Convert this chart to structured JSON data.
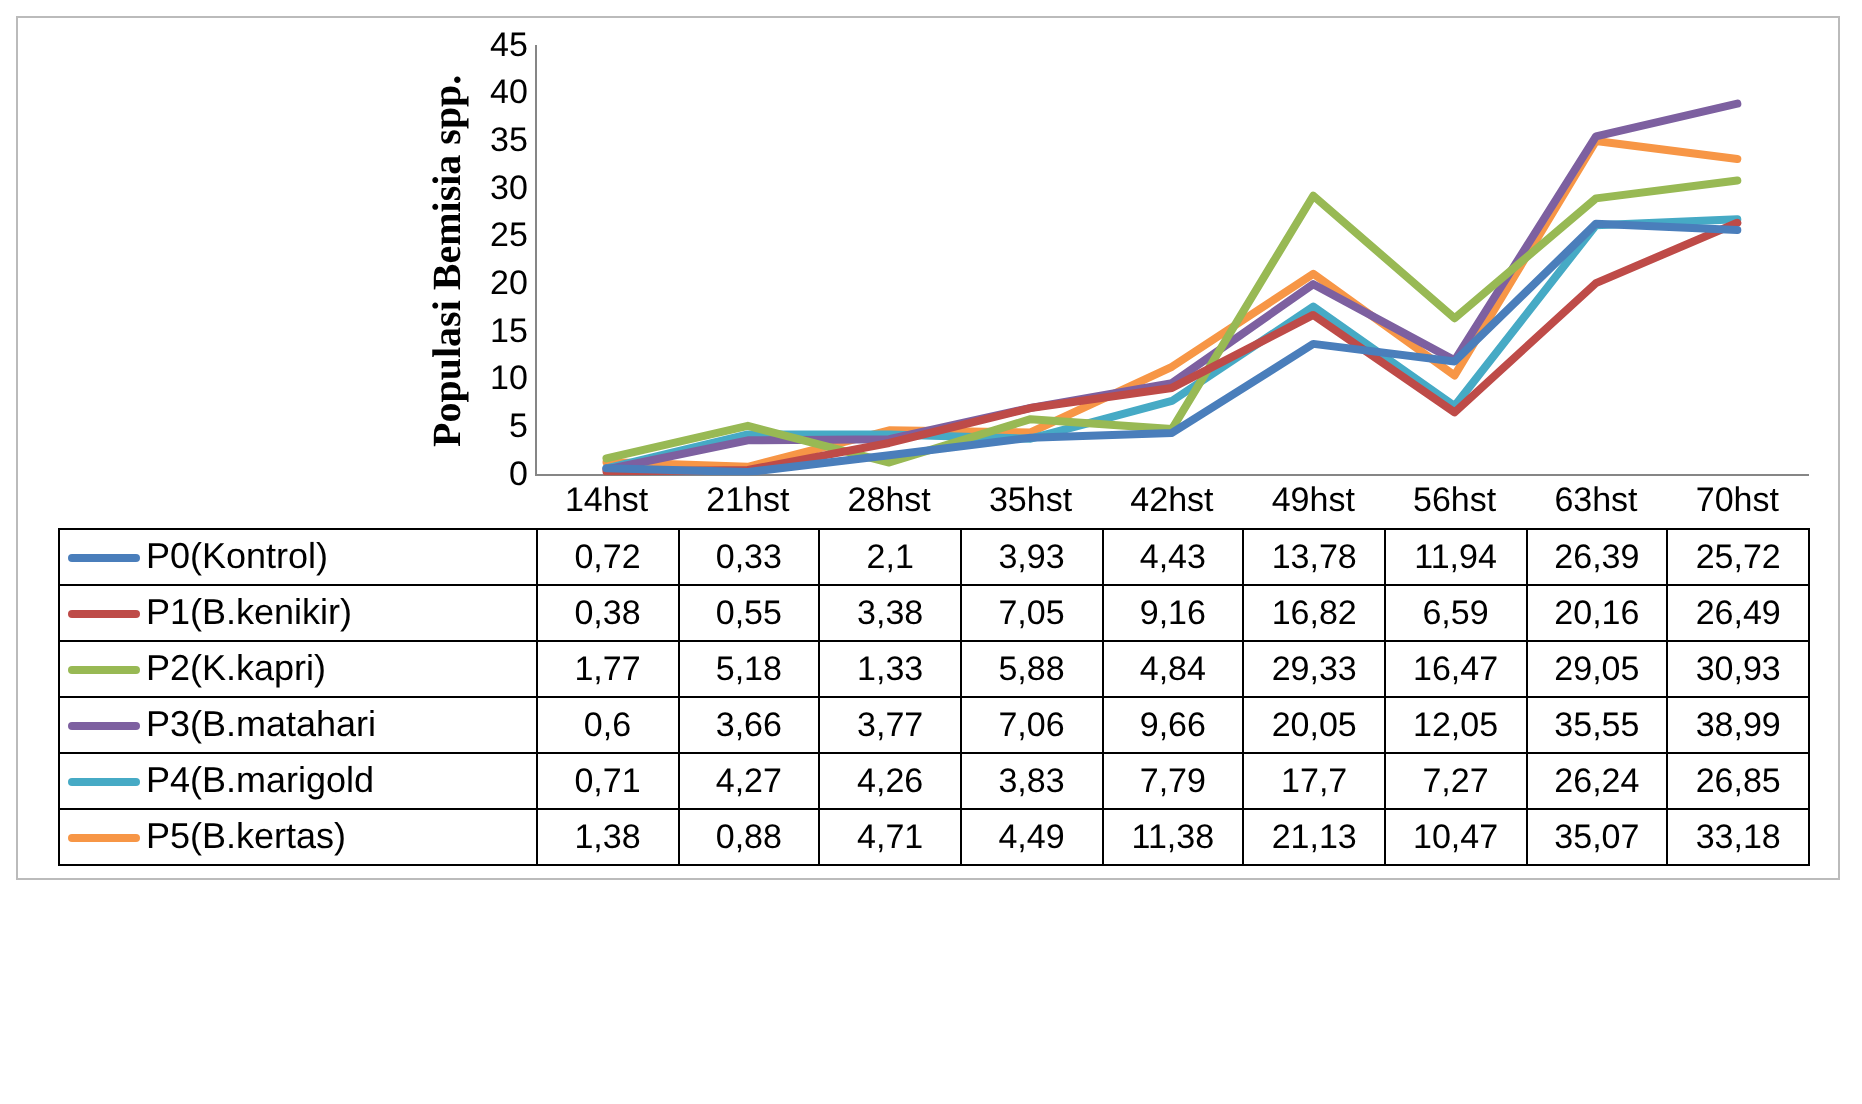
{
  "chart_data": {
    "type": "line",
    "ylabel": "Populasi Bemisia spp.",
    "categories": [
      "14hst",
      "21hst",
      "28hst",
      "35hst",
      "42hst",
      "49hst",
      "56hst",
      "63hst",
      "70hst"
    ],
    "ylim": [
      0,
      45
    ],
    "yticks": [
      0,
      5,
      10,
      15,
      20,
      25,
      30,
      35,
      40,
      45
    ],
    "grid": false,
    "legend": "bottom",
    "marker": "none",
    "series": [
      {
        "name": "P0(Kontrol)",
        "color": "#4a7ebb",
        "values": [
          0.72,
          0.33,
          2.1,
          3.93,
          4.43,
          13.78,
          11.94,
          26.39,
          25.72
        ],
        "value_labels": [
          "0,72",
          "0,33",
          "2,1",
          "3,93",
          "4,43",
          "13,78",
          "11,94",
          "26,39",
          "25,72"
        ]
      },
      {
        "name": "P1(B.kenikir)",
        "color": "#be4b48",
        "values": [
          0.38,
          0.55,
          3.38,
          7.05,
          9.16,
          16.82,
          6.59,
          20.16,
          26.49
        ],
        "value_labels": [
          "0,38",
          "0,55",
          "3,38",
          "7,05",
          "9,16",
          "16,82",
          "6,59",
          "20,16",
          "26,49"
        ]
      },
      {
        "name": "P2(K.kapri)",
        "color": "#98b954",
        "values": [
          1.77,
          5.18,
          1.33,
          5.88,
          4.84,
          29.33,
          16.47,
          29.05,
          30.93
        ],
        "value_labels": [
          "1,77",
          "5,18",
          "1,33",
          "5,88",
          "4,84",
          "29,33",
          "16,47",
          "29,05",
          "30,93"
        ]
      },
      {
        "name": "P3(B.matahari",
        "color": "#7d60a0",
        "values": [
          0.6,
          3.66,
          3.77,
          7.06,
          9.66,
          20.05,
          12.05,
          35.55,
          38.99
        ],
        "value_labels": [
          "0,6",
          "3,66",
          "3,77",
          "7,06",
          "9,66",
          "20,05",
          "12,05",
          "35,55",
          "38,99"
        ]
      },
      {
        "name": "P4(B.marigold",
        "color": "#46aac5",
        "values": [
          0.71,
          4.27,
          4.26,
          3.83,
          7.79,
          17.7,
          7.27,
          26.24,
          26.85
        ],
        "value_labels": [
          "0,71",
          "4,27",
          "4,26",
          "3,83",
          "7,79",
          "17,7",
          "7,27",
          "26,24",
          "26,85"
        ]
      },
      {
        "name": "P5(B.kertas)",
        "color": "#f79646",
        "values": [
          1.38,
          0.88,
          4.71,
          4.49,
          11.38,
          21.13,
          10.47,
          35.07,
          33.18
        ],
        "value_labels": [
          "1,38",
          "0,88",
          "4,71",
          "4,49",
          "11,38",
          "21,13",
          "10,47",
          "35,07",
          "33,18"
        ]
      }
    ]
  }
}
